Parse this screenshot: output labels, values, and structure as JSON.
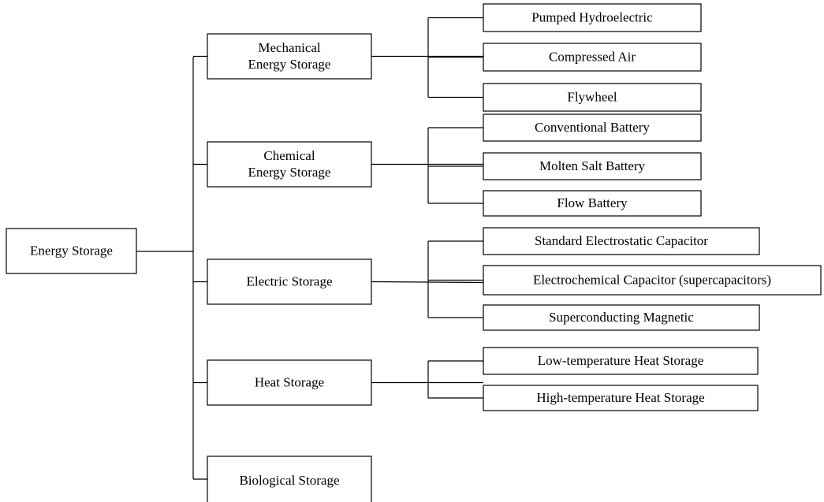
{
  "root": {
    "label": [
      "Energy Storage"
    ]
  },
  "branches": [
    {
      "label": [
        "Mechanical",
        "Energy Storage"
      ],
      "children": [
        "Pumped Hydroelectric",
        "Compressed Air",
        "Flywheel"
      ]
    },
    {
      "label": [
        "Chemical",
        "Energy Storage"
      ],
      "children": [
        "Conventional Battery",
        "Molten Salt Battery",
        "Flow Battery"
      ]
    },
    {
      "label": [
        "Electric Storage"
      ],
      "children": [
        "Standard Electrostatic Capacitor",
        "Electrochemical Capacitor (supercapacitors)",
        "Superconducting Magnetic"
      ]
    },
    {
      "label": [
        "Heat Storage"
      ],
      "children": [
        "Low-temperature Heat Storage",
        "High-temperature Heat Storage"
      ]
    },
    {
      "label": [
        "Biological Storage"
      ],
      "children": []
    }
  ]
}
